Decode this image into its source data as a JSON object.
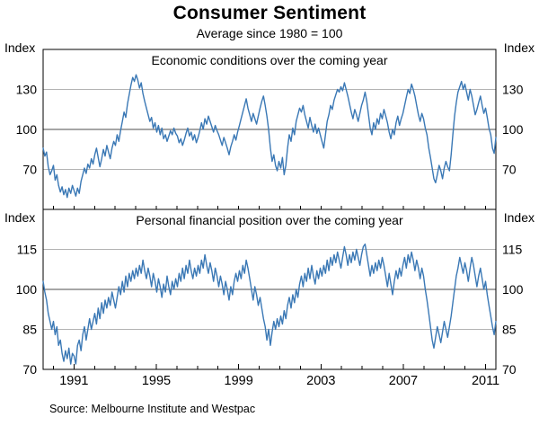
{
  "title": "Consumer Sentiment",
  "subtitle": "Average since 1980 = 100",
  "axis_label": "Index",
  "source": "Source: Melbourne Institute and Westpac",
  "line_color": "#3a78b5",
  "chart_data": [
    {
      "type": "line",
      "title": "Economic conditions over the coming year",
      "ylim": [
        40,
        160
      ],
      "yticks": [
        70,
        100,
        130
      ],
      "baseline": 100,
      "x_start_year": 1989.5,
      "x_end_year": 2011.5,
      "xticks": [],
      "grid": true,
      "legend_position": "none",
      "series": [
        {
          "name": "Economic conditions over the coming year",
          "color": "#3a78b5",
          "values": [
            86,
            80,
            83,
            72,
            66,
            69,
            73,
            62,
            66,
            58,
            53,
            57,
            51,
            55,
            49,
            56,
            52,
            58,
            54,
            50,
            56,
            52,
            61,
            66,
            71,
            67,
            74,
            71,
            78,
            74,
            81,
            86,
            79,
            72,
            78,
            85,
            80,
            88,
            83,
            78,
            86,
            91,
            88,
            96,
            91,
            99,
            106,
            113,
            109,
            119,
            126,
            133,
            139,
            136,
            141,
            137,
            131,
            135,
            127,
            121,
            116,
            111,
            106,
            109,
            101,
            105,
            98,
            103,
            96,
            101,
            93,
            96,
            91,
            95,
            99,
            96,
            101,
            97,
            95,
            90,
            93,
            88,
            92,
            97,
            101,
            95,
            98,
            92,
            96,
            90,
            94,
            99,
            105,
            100,
            108,
            104,
            110,
            106,
            102,
            98,
            103,
            99,
            96,
            92,
            88,
            94,
            90,
            86,
            81,
            87,
            91,
            96,
            92,
            98,
            103,
            108,
            113,
            118,
            123,
            116,
            111,
            106,
            112,
            108,
            104,
            110,
            116,
            121,
            125,
            118,
            110,
            100,
            86,
            76,
            81,
            73,
            69,
            76,
            71,
            79,
            66,
            73,
            86,
            96,
            91,
            101,
            96,
            106,
            111,
            116,
            113,
            118,
            111,
            106,
            101,
            109,
            103,
            98,
            104,
            97,
            101,
            96,
            91,
            86,
            96,
            106,
            111,
            118,
            115,
            122,
            126,
            130,
            128,
            132,
            129,
            135,
            130,
            125,
            119,
            113,
            108,
            115,
            111,
            106,
            112,
            118,
            122,
            128,
            121,
            111,
            101,
            96,
            105,
            100,
            108,
            104,
            112,
            108,
            115,
            110,
            105,
            98,
            93,
            100,
            96,
            105,
            110,
            103,
            108,
            112,
            118,
            124,
            130,
            127,
            134,
            130,
            125,
            118,
            111,
            106,
            112,
            108,
            101,
            96,
            86,
            79,
            71,
            63,
            60,
            66,
            73,
            69,
            63,
            71,
            76,
            72,
            69,
            81,
            96,
            110,
            120,
            128,
            132,
            136,
            130,
            134,
            128,
            122,
            130,
            125,
            118,
            111,
            115,
            120,
            125,
            118,
            112,
            116,
            109,
            101,
            96,
            86,
            82,
            94
          ]
        }
      ]
    },
    {
      "type": "line",
      "title": "Personal financial position over the coming year",
      "ylim": [
        70,
        130
      ],
      "yticks": [
        70,
        85,
        100,
        115
      ],
      "baseline": 100,
      "x_start_year": 1989.5,
      "x_end_year": 2011.5,
      "xticks": [
        1991,
        1995,
        1999,
        2003,
        2007,
        2011
      ],
      "grid": true,
      "legend_position": "none",
      "series": [
        {
          "name": "Personal financial position over the coming year",
          "color": "#3a78b5",
          "values": [
            103,
            99,
            96,
            91,
            88,
            85,
            88,
            83,
            86,
            79,
            81,
            76,
            73,
            77,
            74,
            78,
            72,
            76,
            75,
            72,
            79,
            81,
            77,
            83,
            86,
            81,
            85,
            89,
            85,
            88,
            91,
            87,
            93,
            89,
            95,
            91,
            96,
            93,
            97,
            94,
            99,
            96,
            93,
            97,
            101,
            98,
            103,
            99,
            105,
            101,
            106,
            103,
            107,
            104,
            108,
            105,
            109,
            106,
            111,
            107,
            104,
            108,
            105,
            101,
            106,
            103,
            99,
            104,
            101,
            97,
            102,
            99,
            105,
            101,
            98,
            103,
            100,
            104,
            101,
            106,
            103,
            108,
            104,
            109,
            106,
            111,
            107,
            104,
            108,
            105,
            109,
            106,
            111,
            108,
            113,
            109,
            106,
            110,
            107,
            103,
            108,
            105,
            101,
            105,
            102,
            98,
            103,
            100,
            96,
            101,
            98,
            103,
            106,
            103,
            107,
            104,
            109,
            106,
            111,
            108,
            104,
            100,
            96,
            101,
            98,
            94,
            97,
            93,
            89,
            86,
            81,
            85,
            79,
            84,
            88,
            85,
            89,
            86,
            90,
            87,
            92,
            89,
            94,
            97,
            93,
            98,
            95,
            100,
            97,
            102,
            105,
            101,
            106,
            103,
            108,
            104,
            109,
            105,
            102,
            107,
            104,
            108,
            105,
            109,
            106,
            111,
            107,
            112,
            109,
            113,
            110,
            114,
            111,
            108,
            112,
            116,
            113,
            109,
            113,
            110,
            114,
            111,
            115,
            112,
            109,
            113,
            116,
            117,
            113,
            109,
            105,
            109,
            106,
            110,
            107,
            111,
            108,
            112,
            109,
            105,
            101,
            106,
            102,
            98,
            103,
            107,
            104,
            108,
            105,
            109,
            112,
            108,
            113,
            110,
            114,
            111,
            107,
            111,
            108,
            104,
            108,
            105,
            100,
            96,
            91,
            86,
            81,
            78,
            82,
            86,
            83,
            80,
            84,
            88,
            85,
            82,
            86,
            90,
            95,
            100,
            105,
            108,
            112,
            109,
            106,
            110,
            107,
            103,
            108,
            112,
            109,
            105,
            101,
            105,
            108,
            104,
            100,
            103,
            98,
            94,
            90,
            86,
            83,
            88
          ]
        }
      ]
    }
  ]
}
